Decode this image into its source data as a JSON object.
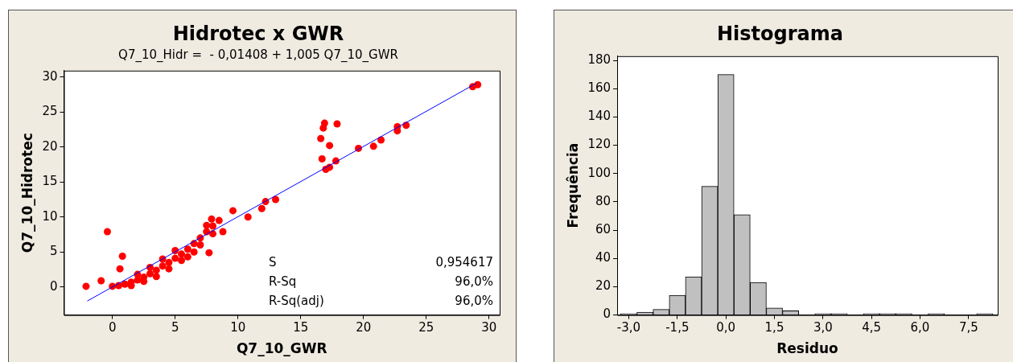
{
  "chart_data": [
    {
      "type": "scatter",
      "title": "Hidrotec x GWR",
      "subtitle": "Q7_10_Hidr =  - 0,01408 + 1,005 Q7_10_GWR",
      "xlabel": "Q7_10_GWR",
      "ylabel": "Q7_10_Hidrotec",
      "xlim": [
        -3.86,
        30.85
      ],
      "ylim": [
        -4.0,
        30.9
      ],
      "xticks": [
        0,
        5,
        10,
        15,
        20,
        25,
        30
      ],
      "yticks": [
        0,
        5,
        10,
        15,
        20,
        25,
        30
      ],
      "marker": "circle",
      "annotations": [
        "S",
        "0,954617",
        "R-Sq",
        "96,0%",
        "R-Sq(adj)",
        "96,0%"
      ],
      "series": [
        {
          "color": "#ff0000",
          "x": [
            -2.1,
            -0.9,
            -0.4,
            0,
            0.5,
            0.6,
            0.8,
            1,
            1.5,
            1.5,
            2,
            2,
            2.5,
            2.5,
            3,
            3,
            3.5,
            3.5,
            4,
            4,
            4.5,
            4.5,
            5,
            5,
            5.5,
            5.5,
            6,
            6,
            6.5,
            6.5,
            7,
            7,
            7.5,
            7.5,
            7.7,
            7.9,
            8,
            8,
            8.5,
            8.8,
            9.6,
            10.8,
            11.9,
            12.2,
            13,
            16.6,
            16.7,
            16.8,
            16.9,
            17.0,
            17.3,
            17.3,
            17.8,
            17.9,
            19.6,
            20.8,
            21.4,
            22.7,
            22.7,
            23.4,
            28.7,
            29.1
          ],
          "values": [
            0.1,
            0.9,
            7.9,
            0.1,
            0.2,
            2.6,
            4.4,
            0.4,
            0.7,
            0.2,
            1,
            1.8,
            1.4,
            0.8,
            1.9,
            2.8,
            2.4,
            1.5,
            3,
            4,
            3.5,
            2.6,
            4.1,
            5.2,
            4.7,
            3.8,
            5.4,
            4.3,
            6.2,
            5.0,
            7,
            6,
            7.9,
            8.8,
            4.9,
            9.7,
            8.7,
            7.6,
            9.5,
            7.9,
            10.9,
            10.0,
            11.2,
            12.2,
            12.5,
            21.2,
            18.3,
            22.7,
            23.4,
            16.8,
            20.2,
            17.1,
            18.0,
            23.3,
            19.8,
            20.1,
            21.0,
            22.3,
            22.9,
            23.1,
            28.6,
            28.9
          ]
        },
        {
          "type": "line",
          "color": "#0000ff",
          "marker": "none",
          "x": [
            -2,
            29
          ],
          "values": [
            -2,
            29.1
          ]
        }
      ]
    },
    {
      "type": "histogram",
      "title": "Histograma",
      "xlabel": "Residuo",
      "ylabel": "Frequência",
      "color": "#c0c0c0",
      "xlim": [
        -3.36,
        8.4
      ],
      "ylim": [
        0,
        183
      ],
      "xticks": [
        {
          "value": -3,
          "label": "-3,0"
        },
        {
          "value": -1.5,
          "label": "-1,5"
        },
        {
          "value": 0,
          "label": "0,0"
        },
        {
          "value": 1.5,
          "label": "1,5"
        },
        {
          "value": 3,
          "label": "3,0"
        },
        {
          "value": 4.5,
          "label": "4,5"
        },
        {
          "value": 6,
          "label": "6,0"
        },
        {
          "value": 7.5,
          "label": "7,5"
        }
      ],
      "yticks": [
        0,
        20,
        40,
        60,
        80,
        100,
        120,
        140,
        160,
        180
      ],
      "bins": [
        -3.25,
        -2.75,
        -2.25,
        -1.75,
        -1.25,
        -0.75,
        -0.25,
        0.25,
        0.75,
        1.25,
        1.75,
        2.25,
        2.75,
        3.25,
        3.75,
        4.25,
        4.75,
        5.25,
        5.75,
        6.25,
        6.75,
        7.25,
        7.75,
        8.25
      ],
      "values": [
        1,
        2,
        4,
        14,
        27,
        91,
        170,
        71,
        23,
        5,
        3,
        0,
        1,
        1,
        0,
        1,
        1,
        1,
        0,
        1,
        0,
        0,
        1
      ]
    }
  ]
}
